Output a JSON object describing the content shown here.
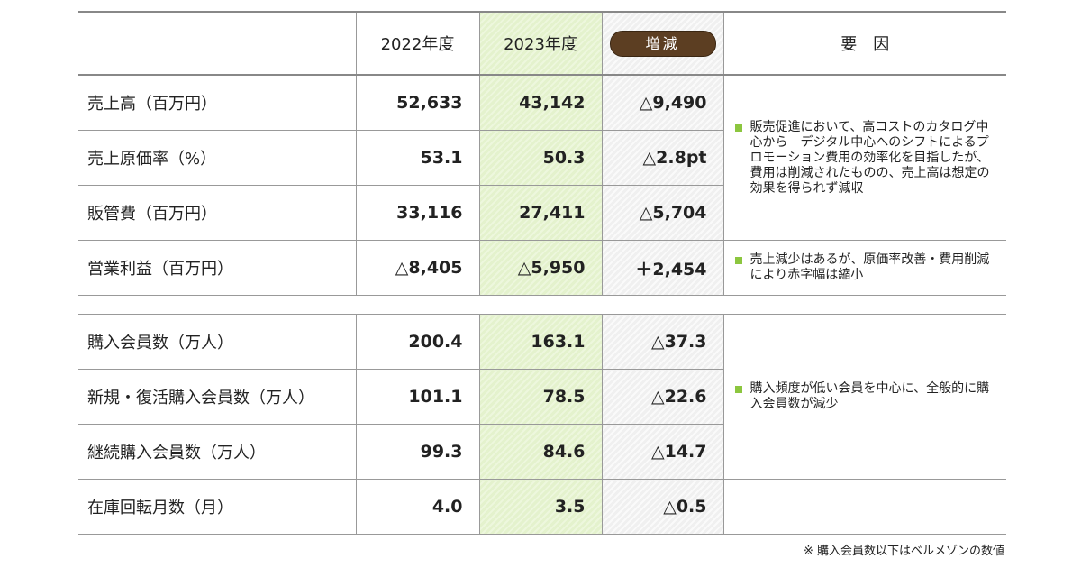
{
  "header": {
    "label": "",
    "y2022": "2022年度",
    "y2023": "2023年度",
    "diff": "増減",
    "reason": "要　因"
  },
  "block1": [
    {
      "label": "売上高（百万円）",
      "y2022": "52,633",
      "y2023": "43,142",
      "diff": "△9,490"
    },
    {
      "label": "売上原価率（%）",
      "y2022": "53.1",
      "y2023": "50.3",
      "diff": "△2.8pt"
    },
    {
      "label": "販管費（百万円）",
      "y2022": "33,116",
      "y2023": "27,411",
      "diff": "△5,704"
    },
    {
      "label": "営業利益（百万円）",
      "y2022": "△8,405",
      "y2023": "△5,950",
      "diff": "＋2,454"
    }
  ],
  "block1_reasons": [
    "販売促進において、高コストのカタログ中心から　デジタル中心へのシフトによるプロモーション費用の効率化を目指したが、費用は削減されたものの、売上高は想定の効果を得られず減収",
    "売上減少はあるが、原価率改善・費用削減により赤字幅は縮小"
  ],
  "block2": [
    {
      "label": "購入会員数（万人）",
      "y2022": "200.4",
      "y2023": "163.1",
      "diff": "△37.3"
    },
    {
      "label": "新規・復活購入会員数（万人）",
      "y2022": "101.1",
      "y2023": "78.5",
      "diff": "△22.6"
    },
    {
      "label": "継続購入会員数（万人）",
      "y2022": "99.3",
      "y2023": "84.6",
      "diff": "△14.7"
    },
    {
      "label": "在庫回転月数（月）",
      "y2022": "4.0",
      "y2023": "3.5",
      "diff": "△0.5"
    }
  ],
  "block2_reasons": [
    "購入頻度が低い会員を中心に、全般的に購入会員数が減少"
  ],
  "footnote": "※ 購入会員数以下はベルメゾンの数値",
  "colors": {
    "accent_green": "#8cc63f",
    "pill": "#5c3e22",
    "highlight_2023": "#e4f2cd"
  }
}
